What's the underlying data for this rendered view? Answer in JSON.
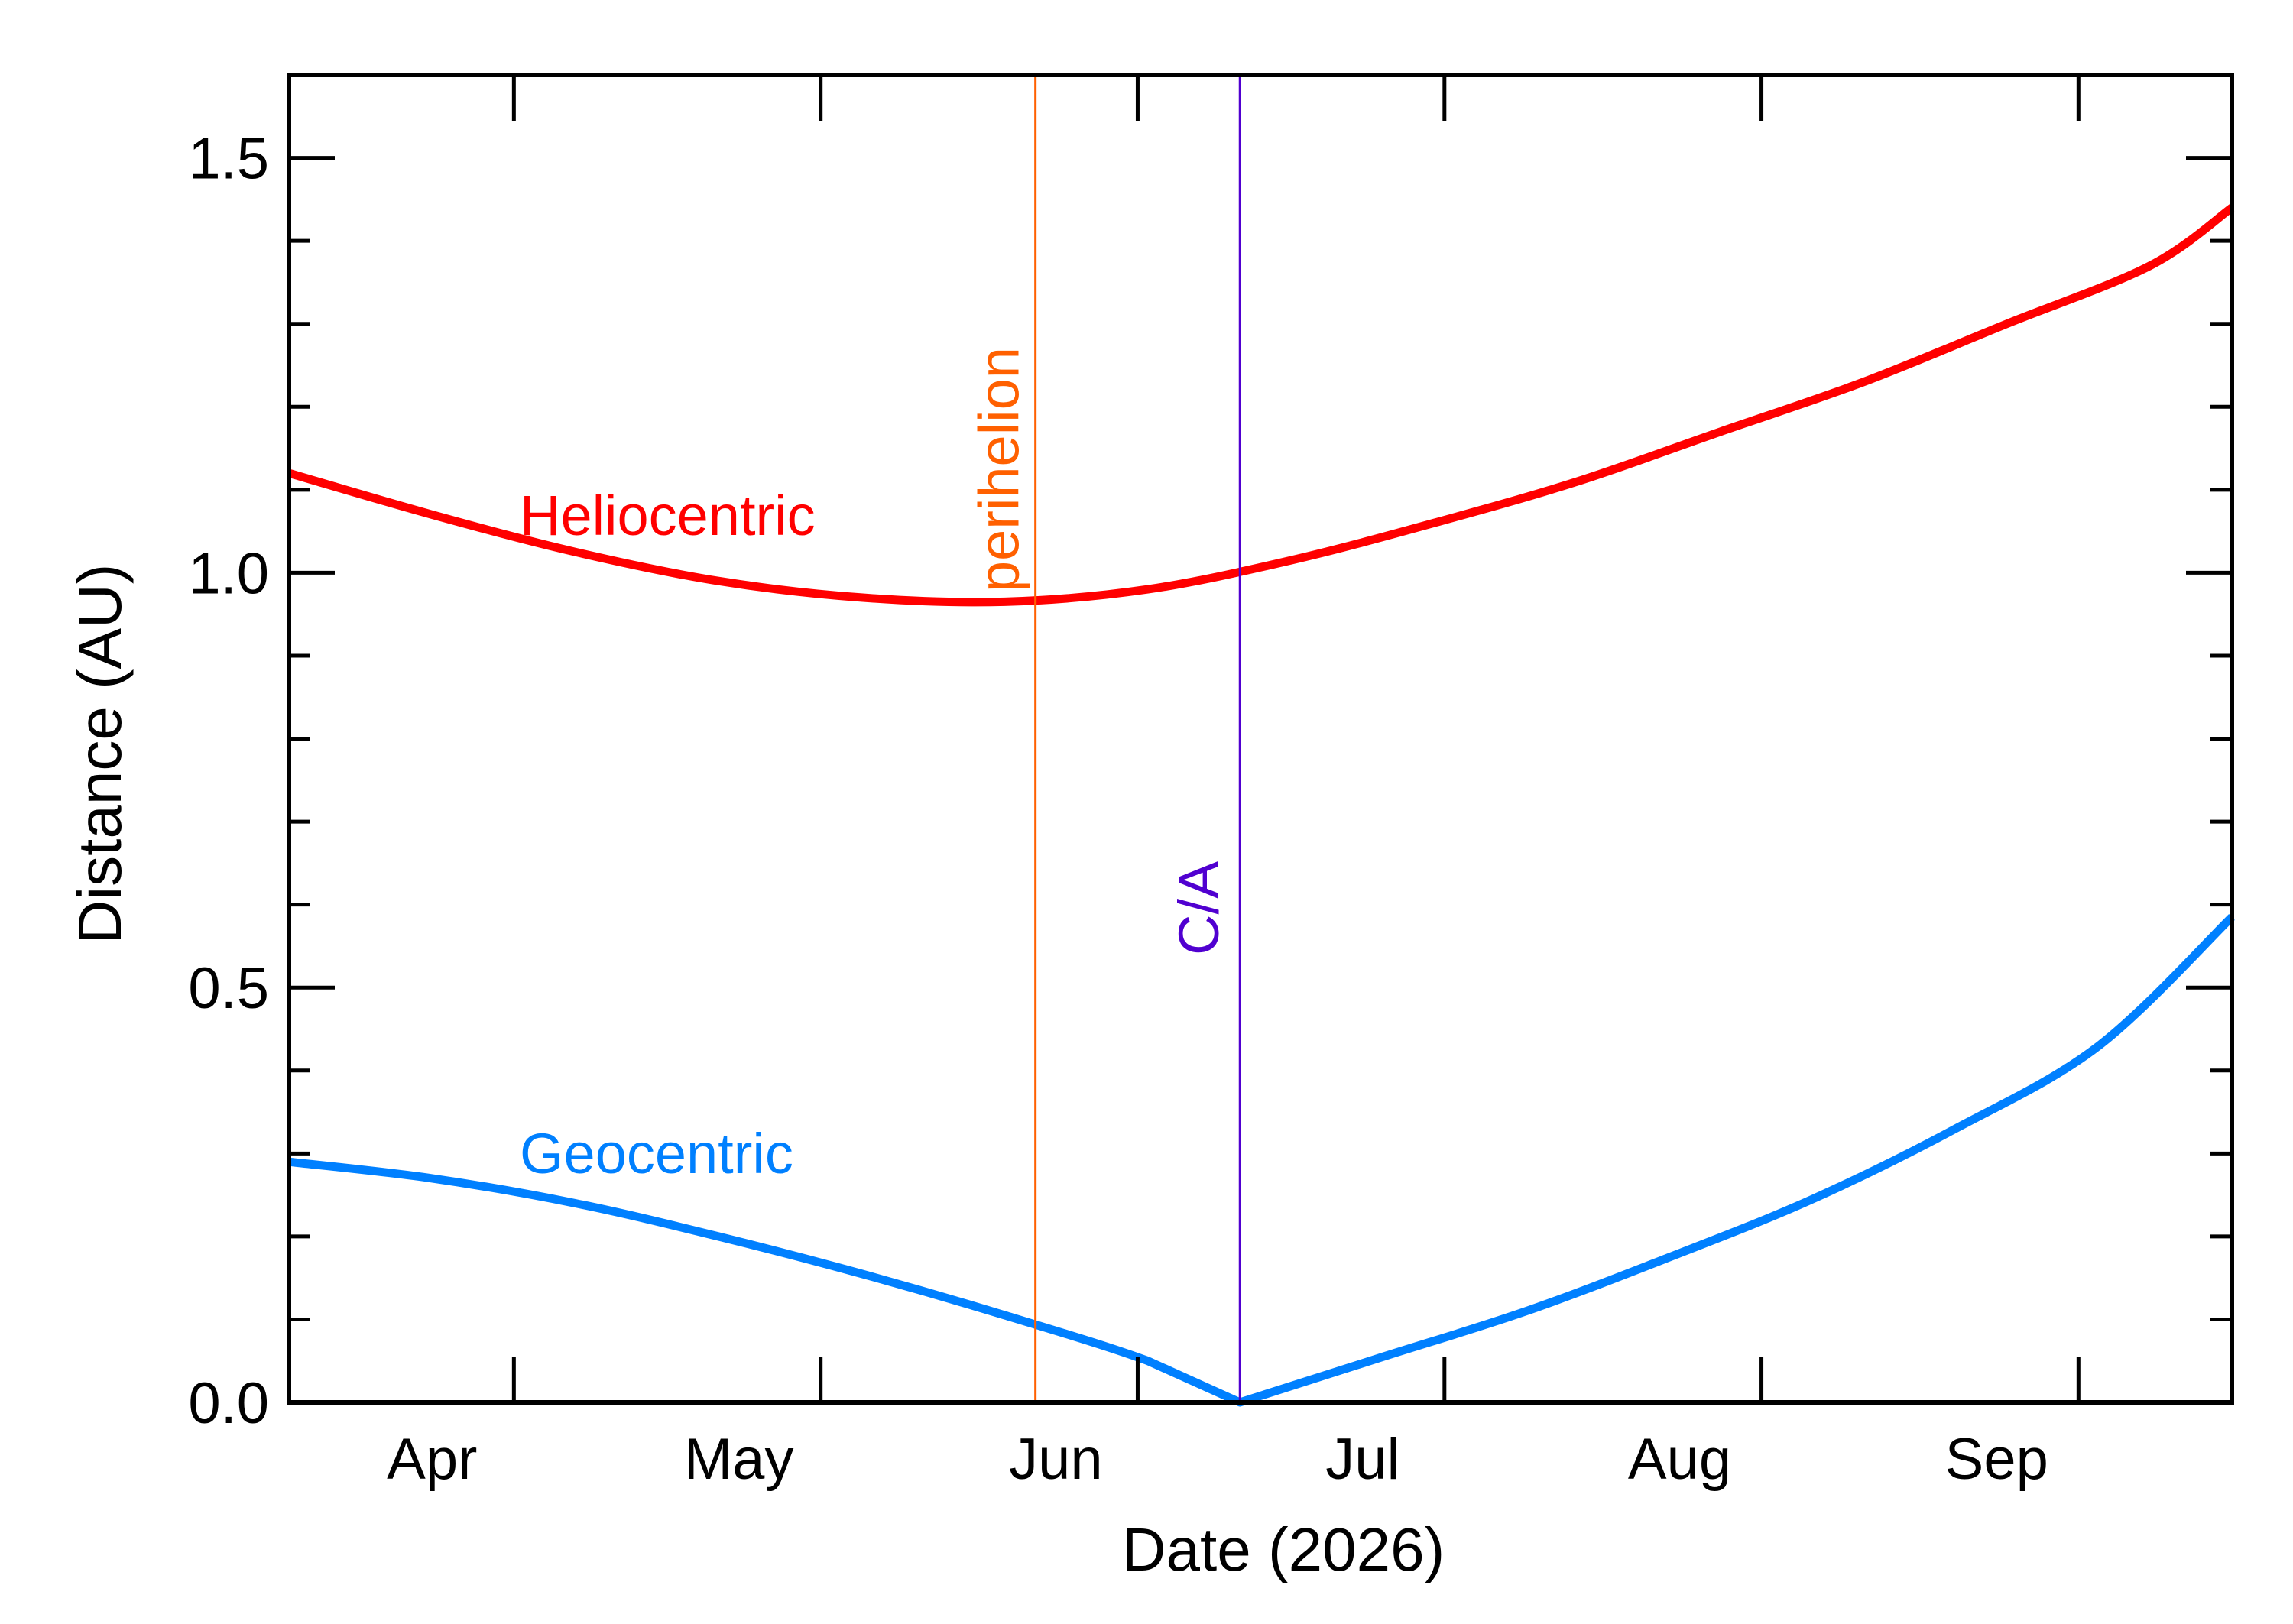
{
  "chart_data": {
    "type": "line",
    "xlabel": "Date (2026)",
    "ylabel": "Distance (AU)",
    "xlim": [
      "2026-03-24",
      "2026-09-30"
    ],
    "ylim": [
      0,
      1.6
    ],
    "y_ticks": [
      0.0,
      0.5,
      1.0,
      1.5
    ],
    "y_tick_labels": [
      "0.0",
      "0.5",
      "1.0",
      "1.5"
    ],
    "x_month_labels": [
      {
        "date": "2026-04-01",
        "label": "Apr"
      },
      {
        "date": "2026-05-01",
        "label": "May"
      },
      {
        "date": "2026-06-01",
        "label": "Jun"
      },
      {
        "date": "2026-07-01",
        "label": "Jul"
      },
      {
        "date": "2026-08-01",
        "label": "Aug"
      },
      {
        "date": "2026-09-01",
        "label": "Sep"
      }
    ],
    "x_major_ticks": [
      "2026-04-15",
      "2026-05-15",
      "2026-06-15",
      "2026-07-15",
      "2026-08-15",
      "2026-09-15"
    ],
    "grid": false,
    "series": [
      {
        "name": "Heliocentric",
        "color": "#ff0000",
        "x": [
          "2026-03-24",
          "2026-04-07",
          "2026-04-21",
          "2026-05-05",
          "2026-05-19",
          "2026-06-02",
          "2026-06-16",
          "2026-06-30",
          "2026-07-14",
          "2026-07-28",
          "2026-08-11",
          "2026-08-25",
          "2026-09-08",
          "2026-09-22",
          "2026-09-30"
        ],
        "values": [
          1.12,
          1.07,
          1.025,
          0.99,
          0.97,
          0.965,
          0.98,
          1.015,
          1.06,
          1.11,
          1.17,
          1.23,
          1.3,
          1.37,
          1.44
        ]
      },
      {
        "name": "Geocentric",
        "color": "#0080ff",
        "x": [
          "2026-03-24",
          "2026-04-07",
          "2026-04-21",
          "2026-05-05",
          "2026-05-19",
          "2026-06-02",
          "2026-06-16",
          "2026-06-25",
          "2026-07-09",
          "2026-07-23",
          "2026-08-06",
          "2026-08-20",
          "2026-09-03",
          "2026-09-17",
          "2026-09-30"
        ],
        "values": [
          0.29,
          0.27,
          0.24,
          0.2,
          0.155,
          0.105,
          0.05,
          0.0,
          0.055,
          0.11,
          0.175,
          0.245,
          0.33,
          0.43,
          0.585
        ]
      }
    ],
    "annotations": [
      {
        "label": "perihelion",
        "date": "2026-06-05",
        "color": "#ff6000"
      },
      {
        "label": "C/A",
        "date": "2026-06-25",
        "color": "#5000d0"
      }
    ]
  }
}
